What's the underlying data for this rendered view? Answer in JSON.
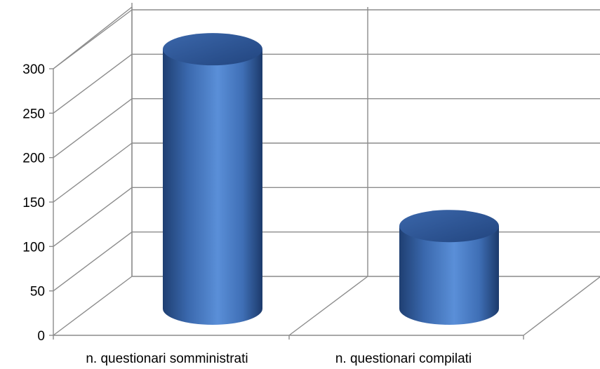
{
  "chart_data": {
    "type": "bar",
    "style": "3d-cylinder",
    "categories": [
      "n. questionari somministrati",
      "n. questionari compilati"
    ],
    "series": [
      {
        "values": [
          292,
          93
        ],
        "color": "#4f81bd"
      }
    ],
    "title": "",
    "xlabel": "",
    "ylabel": "",
    "ylim": [
      0,
      300
    ],
    "yticks": [
      0,
      50,
      100,
      150,
      200,
      250,
      300
    ],
    "ytick_labels": [
      "0",
      "50",
      "100",
      "150",
      "200",
      "250",
      "300"
    ],
    "grid": true,
    "legend": "none"
  }
}
